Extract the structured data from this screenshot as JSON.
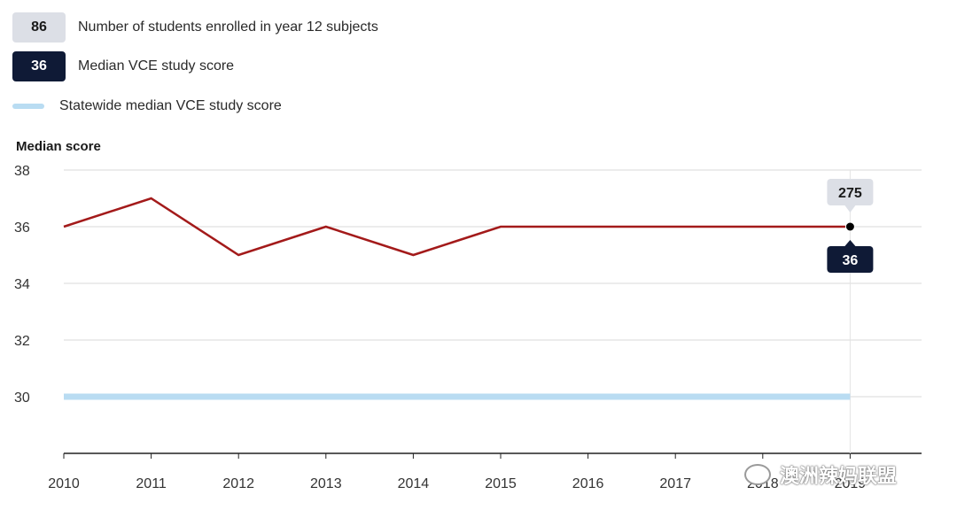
{
  "legend": {
    "enrolled": {
      "value": "86",
      "label": "Number of students enrolled in year 12 subjects"
    },
    "median": {
      "value": "36",
      "label": "Median VCE study score"
    },
    "statewide": {
      "label": "Statewide median VCE study score"
    }
  },
  "chart_data": {
    "type": "line",
    "ylabel": "Median score",
    "x": [
      "2010",
      "2011",
      "2012",
      "2013",
      "2014",
      "2015",
      "2016",
      "2017",
      "2018",
      "2019"
    ],
    "ylim": [
      28,
      38
    ],
    "yticks": [
      30,
      32,
      34,
      36,
      38
    ],
    "grid": true,
    "series": [
      {
        "name": "Median VCE study score",
        "values": [
          36,
          37,
          35,
          36,
          35,
          36,
          36,
          36,
          36,
          36
        ],
        "color": "#a31a1a"
      },
      {
        "name": "Statewide median VCE study score",
        "values": [
          30,
          30,
          30,
          30,
          30,
          30,
          30,
          30,
          30,
          30
        ],
        "color": "#b9dcf2"
      }
    ],
    "tooltip": {
      "x": "2019",
      "enrolled": "275",
      "median": "36"
    }
  },
  "watermark": {
    "text": "澳洲辣妈联盟"
  }
}
